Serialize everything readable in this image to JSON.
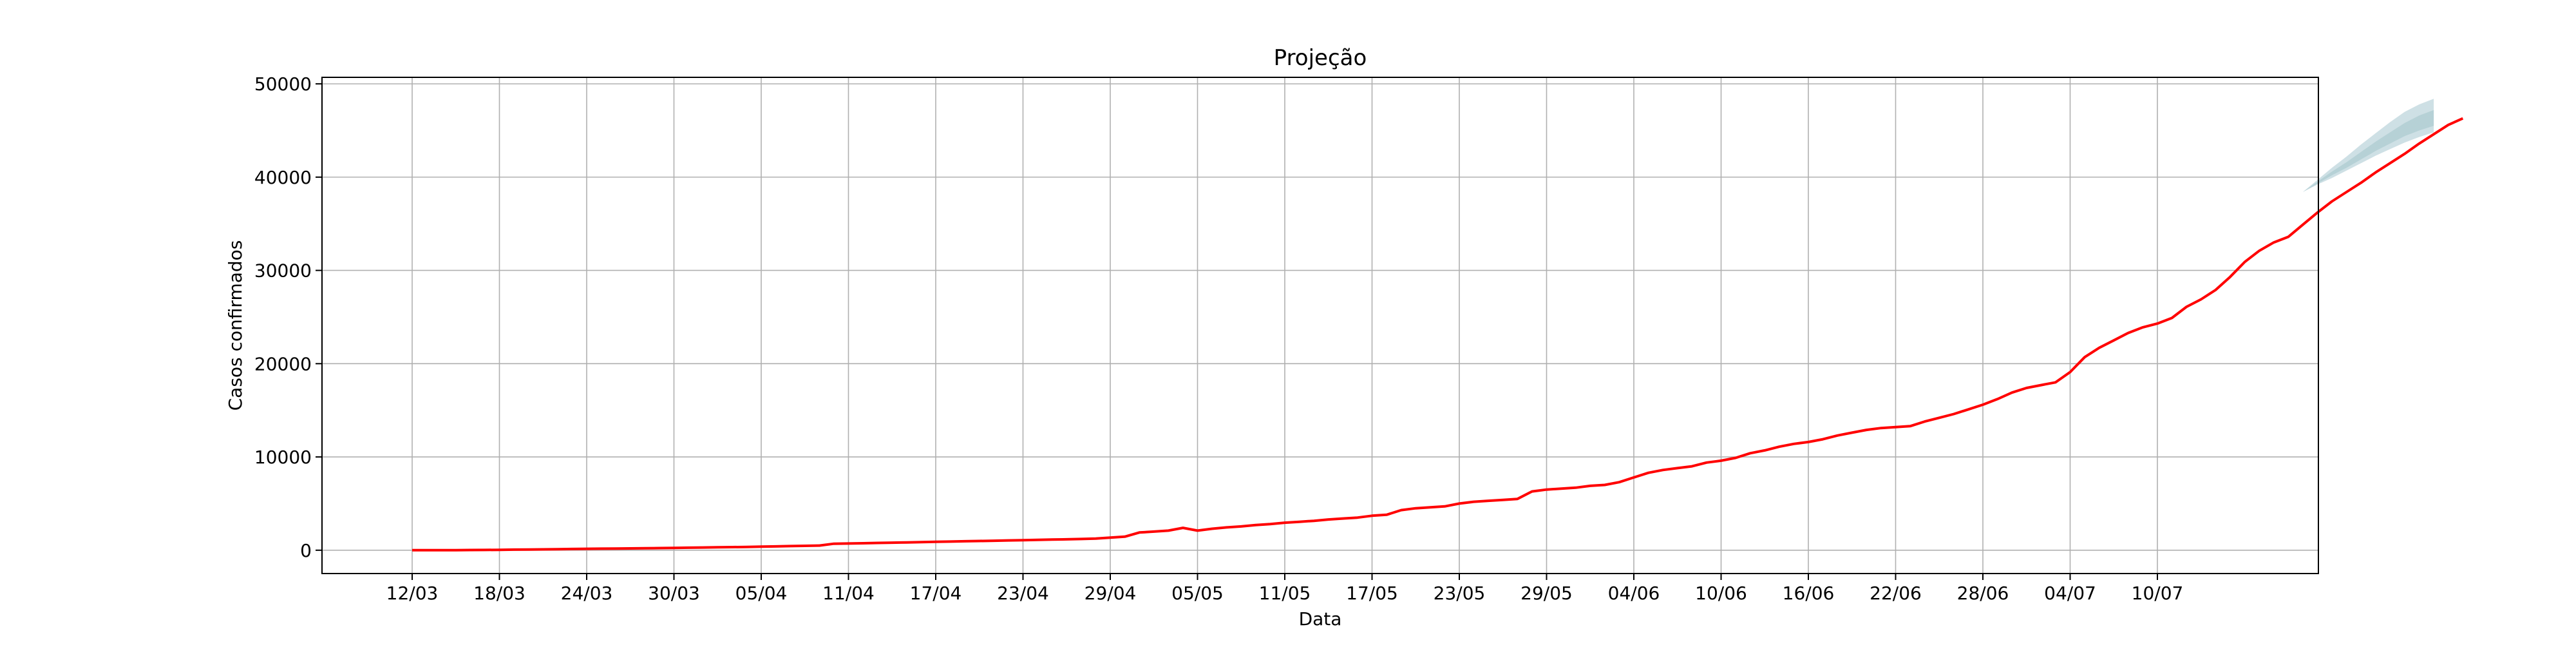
{
  "chart_data": {
    "type": "line",
    "title": "Projeção",
    "xlabel": "Data",
    "ylabel": "Casos confirmados",
    "ylim": [
      -2500,
      50700
    ],
    "yticks": [
      0,
      10000,
      20000,
      30000,
      40000,
      50000
    ],
    "xticks": [
      "12/03",
      "18/03",
      "24/03",
      "30/03",
      "05/04",
      "11/04",
      "17/04",
      "23/04",
      "29/04",
      "05/05",
      "11/05",
      "17/05",
      "23/05",
      "29/05",
      "04/06",
      "10/06",
      "16/06",
      "22/06",
      "28/06",
      "04/07",
      "10/07"
    ],
    "x_start": "12/03",
    "grid": true,
    "colors": {
      "line": "#ff0000",
      "band_outer": "#c9dde2",
      "band_inner": "#b4cfd4",
      "grid": "#b0b0b0"
    },
    "series": [
      {
        "values": [
          0,
          2,
          5,
          10,
          20,
          32,
          45,
          60,
          75,
          90,
          110,
          130,
          150,
          165,
          180,
          195,
          210,
          230,
          250,
          270,
          290,
          310,
          330,
          350,
          380,
          410,
          440,
          470,
          500,
          700,
          720,
          750,
          780,
          810,
          840,
          870,
          900,
          930,
          960,
          990,
          1020,
          1050,
          1080,
          1110,
          1140,
          1170,
          1200,
          1250,
          1350,
          1450,
          1900,
          2000,
          2100,
          2400,
          2100,
          2300,
          2450,
          2550,
          2700,
          2800,
          2950,
          3050,
          3150,
          3300,
          3400,
          3500,
          3700,
          3800,
          4300,
          4500,
          4600,
          4700,
          5000,
          5200,
          5300,
          5400,
          5500,
          6300,
          6500,
          6600,
          6700,
          6900,
          7000,
          7300,
          7800,
          8300,
          8600,
          8800,
          9000,
          9400,
          9600,
          9900,
          10400,
          10700,
          11100,
          11400,
          11600,
          11900,
          12300,
          12600,
          12900,
          13100,
          13200,
          13300,
          13800,
          14200,
          14600,
          15100,
          15600,
          16200,
          16900,
          17400,
          17700,
          18000,
          19100,
          20700,
          21700,
          22500,
          23300,
          23900,
          24300,
          24900,
          26100,
          26900,
          27900,
          29300,
          30900,
          32100,
          33000,
          33600,
          34900,
          36200,
          37400,
          38400,
          39400,
          40500,
          41500,
          42500,
          43600,
          44600,
          45600,
          46300
        ]
      }
    ],
    "projection_start_index": 130,
    "band_outer": {
      "lower": [
        38400,
        39200,
        39900,
        40700,
        41500,
        42300,
        43000,
        43700,
        44300,
        44800
      ],
      "upper": [
        38400,
        39700,
        41000,
        42200,
        43500,
        44700,
        45900,
        47000,
        47800,
        48400
      ]
    },
    "band_inner": {
      "lower": [
        38400,
        39300,
        40200,
        41000,
        41900,
        42800,
        43600,
        44400,
        45000,
        45500
      ],
      "upper": [
        38400,
        39500,
        40600,
        41600,
        42700,
        43800,
        44800,
        45800,
        46600,
        47200
      ]
    }
  }
}
